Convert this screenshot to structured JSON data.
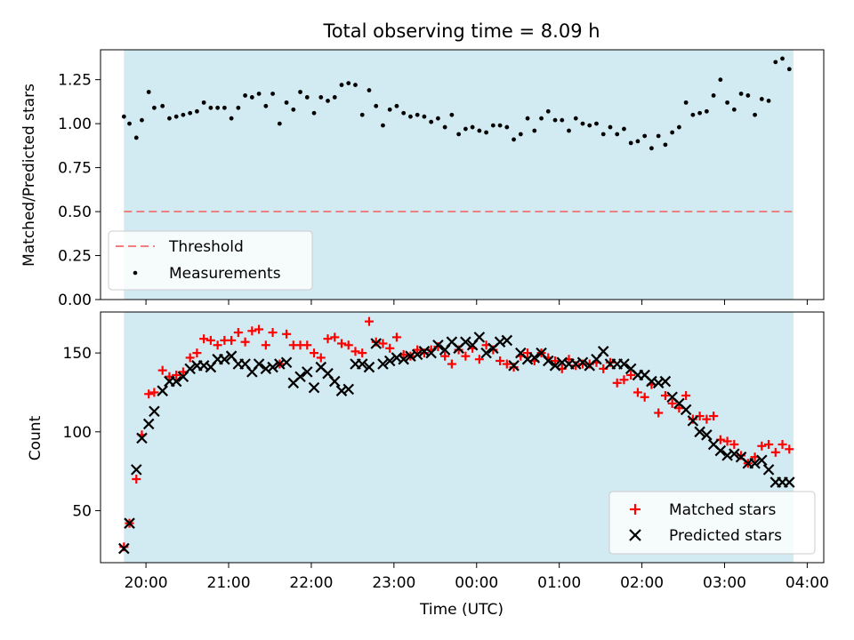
{
  "chart_data": [
    {
      "type": "scatter",
      "title": "Total observing time = 8.09 h",
      "ylabel": "Matched/Predicted stars",
      "ylim": [
        0,
        1.42
      ],
      "yticks": [
        0,
        0.25,
        0.5,
        0.75,
        1.0,
        1.25
      ],
      "ytick_labels": [
        "0.00",
        "0.25",
        "0.50",
        "0.75",
        "1.00",
        "1.25"
      ],
      "observing_window": {
        "start": "19:44",
        "end": "03:50"
      },
      "threshold": {
        "name": "Threshold",
        "value": 0.5,
        "color": "#f08080",
        "style": "dashed"
      },
      "legend": {
        "placement": "lower-left",
        "entries": [
          "Threshold",
          "Measurements"
        ]
      },
      "series": [
        {
          "name": "Measurements",
          "marker": "dot",
          "color": "#000000",
          "x": [
            "19:44",
            "19:48",
            "19:53",
            "19:57",
            "20:02",
            "20:06",
            "20:12",
            "20:17",
            "20:22",
            "20:27",
            "20:32",
            "20:37",
            "20:42",
            "20:47",
            "20:52",
            "20:57",
            "21:02",
            "21:07",
            "21:12",
            "21:17",
            "21:22",
            "21:27",
            "21:32",
            "21:37",
            "21:42",
            "21:47",
            "21:52",
            "21:57",
            "22:02",
            "22:07",
            "22:12",
            "22:17",
            "22:22",
            "22:27",
            "22:32",
            "22:37",
            "22:42",
            "22:47",
            "22:52",
            "22:57",
            "23:02",
            "23:07",
            "23:12",
            "23:17",
            "23:22",
            "23:27",
            "23:32",
            "23:37",
            "23:42",
            "23:47",
            "23:52",
            "23:57",
            "00:02",
            "00:07",
            "00:12",
            "00:17",
            "00:22",
            "00:27",
            "00:32",
            "00:37",
            "00:42",
            "00:47",
            "00:52",
            "00:57",
            "01:02",
            "01:07",
            "01:12",
            "01:17",
            "01:22",
            "01:27",
            "01:32",
            "01:37",
            "01:42",
            "01:47",
            "01:52",
            "01:57",
            "02:02",
            "02:07",
            "02:12",
            "02:17",
            "02:22",
            "02:27",
            "02:32",
            "02:37",
            "02:42",
            "02:47",
            "02:52",
            "02:57",
            "03:02",
            "03:07",
            "03:12",
            "03:17",
            "03:22",
            "03:27",
            "03:32",
            "03:37",
            "03:42",
            "03:47"
          ],
          "y": [
            1.04,
            1.0,
            0.92,
            1.02,
            1.18,
            1.09,
            1.1,
            1.03,
            1.04,
            1.05,
            1.06,
            1.07,
            1.12,
            1.09,
            1.09,
            1.09,
            1.03,
            1.09,
            1.16,
            1.15,
            1.17,
            1.1,
            1.17,
            1.0,
            1.12,
            1.08,
            1.18,
            1.15,
            1.06,
            1.15,
            1.13,
            1.15,
            1.22,
            1.23,
            1.22,
            1.05,
            1.19,
            1.1,
            0.99,
            1.08,
            1.1,
            1.06,
            1.04,
            1.05,
            1.04,
            1.01,
            1.03,
            0.98,
            1.05,
            0.94,
            0.97,
            0.98,
            0.96,
            0.95,
            0.99,
            0.99,
            0.98,
            0.91,
            0.94,
            1.03,
            0.96,
            1.03,
            1.07,
            1.02,
            1.02,
            0.96,
            1.03,
            1.0,
            0.99,
            1.0,
            0.94,
            0.98,
            0.94,
            0.97,
            0.89,
            0.9,
            0.93,
            0.86,
            0.93,
            0.88,
            0.95,
            0.98,
            1.12,
            1.05,
            1.06,
            1.07,
            1.16,
            1.25,
            1.12,
            1.08,
            1.17,
            1.16,
            1.05,
            1.14,
            1.13,
            1.35,
            1.37,
            1.31
          ]
        }
      ]
    },
    {
      "type": "scatter",
      "xlabel": "Time (UTC)",
      "ylabel": "Count",
      "ylim": [
        17,
        176
      ],
      "yticks": [
        50,
        100,
        150
      ],
      "ytick_labels": [
        "50",
        "100",
        "150"
      ],
      "xticks": [
        "20:00",
        "21:00",
        "22:00",
        "23:00",
        "00:00",
        "01:00",
        "02:00",
        "03:00",
        "04:00"
      ],
      "x_range": [
        "19:27",
        "04:12"
      ],
      "observing_window": {
        "start": "19:44",
        "end": "03:50"
      },
      "legend": {
        "placement": "lower-right",
        "entries": [
          "Matched stars",
          "Predicted stars"
        ]
      },
      "series": [
        {
          "name": "Matched stars",
          "marker": "plus",
          "color": "#ff0000",
          "x": [
            "19:44",
            "19:48",
            "19:53",
            "19:57",
            "20:02",
            "20:06",
            "20:12",
            "20:17",
            "20:22",
            "20:27",
            "20:32",
            "20:37",
            "20:42",
            "20:47",
            "20:52",
            "20:57",
            "21:02",
            "21:07",
            "21:12",
            "21:17",
            "21:22",
            "21:27",
            "21:32",
            "21:37",
            "21:42",
            "21:47",
            "21:52",
            "21:57",
            "22:02",
            "22:07",
            "22:12",
            "22:17",
            "22:22",
            "22:27",
            "22:32",
            "22:37",
            "22:42",
            "22:47",
            "22:52",
            "22:57",
            "23:02",
            "23:07",
            "23:12",
            "23:17",
            "23:22",
            "23:27",
            "23:32",
            "23:37",
            "23:42",
            "23:47",
            "23:52",
            "23:57",
            "00:02",
            "00:07",
            "00:12",
            "00:17",
            "00:22",
            "00:27",
            "00:32",
            "00:37",
            "00:42",
            "00:47",
            "00:52",
            "00:57",
            "01:02",
            "01:07",
            "01:12",
            "01:17",
            "01:22",
            "01:27",
            "01:32",
            "01:37",
            "01:42",
            "01:47",
            "01:52",
            "01:57",
            "02:02",
            "02:07",
            "02:12",
            "02:17",
            "02:22",
            "02:27",
            "02:32",
            "02:37",
            "02:42",
            "02:47",
            "02:52",
            "02:57",
            "03:02",
            "03:07",
            "03:12",
            "03:17",
            "03:22",
            "03:27",
            "03:32",
            "03:37",
            "03:42",
            "03:47"
          ],
          "y": [
            27,
            42,
            70,
            98,
            124,
            125,
            139,
            135,
            136,
            138,
            147,
            150,
            159,
            158,
            155,
            158,
            158,
            163,
            157,
            164,
            165,
            155,
            163,
            143,
            162,
            155,
            155,
            155,
            150,
            147,
            159,
            160,
            156,
            155,
            151,
            150,
            170,
            157,
            156,
            153,
            160,
            149,
            148,
            152,
            150,
            152,
            154,
            148,
            143,
            152,
            148,
            153,
            146,
            155,
            152,
            145,
            143,
            141,
            148,
            150,
            145,
            150,
            147,
            145,
            140,
            146,
            142,
            143,
            143,
            144,
            140,
            144,
            131,
            133,
            136,
            125,
            122,
            130,
            112,
            123,
            118,
            115,
            123,
            108,
            110,
            108,
            110,
            95,
            94,
            92,
            85,
            80,
            84,
            91,
            92,
            87,
            92,
            89
          ]
        },
        {
          "name": "Predicted stars",
          "marker": "x",
          "color": "#000000",
          "x": [
            "19:44",
            "19:48",
            "19:53",
            "19:57",
            "20:02",
            "20:06",
            "20:12",
            "20:17",
            "20:22",
            "20:27",
            "20:32",
            "20:37",
            "20:42",
            "20:47",
            "20:52",
            "20:57",
            "21:02",
            "21:07",
            "21:12",
            "21:17",
            "21:22",
            "21:27",
            "21:32",
            "21:37",
            "21:42",
            "21:47",
            "21:52",
            "21:57",
            "22:02",
            "22:07",
            "22:12",
            "22:17",
            "22:22",
            "22:27",
            "22:32",
            "22:37",
            "22:42",
            "22:47",
            "22:52",
            "22:57",
            "23:02",
            "23:07",
            "23:12",
            "23:17",
            "23:22",
            "23:27",
            "23:32",
            "23:37",
            "23:42",
            "23:47",
            "23:52",
            "23:57",
            "00:02",
            "00:07",
            "00:12",
            "00:17",
            "00:22",
            "00:27",
            "00:32",
            "00:37",
            "00:42",
            "00:47",
            "00:52",
            "00:57",
            "01:02",
            "01:07",
            "01:12",
            "01:17",
            "01:22",
            "01:27",
            "01:32",
            "01:37",
            "01:42",
            "01:47",
            "01:52",
            "01:57",
            "02:02",
            "02:07",
            "02:12",
            "02:17",
            "02:22",
            "02:27",
            "02:32",
            "02:37",
            "02:42",
            "02:47",
            "02:52",
            "02:57",
            "03:02",
            "03:07",
            "03:12",
            "03:17",
            "03:22",
            "03:27",
            "03:32",
            "03:37",
            "03:42",
            "03:47"
          ],
          "y": [
            26,
            42,
            76,
            96,
            105,
            113,
            126,
            132,
            132,
            135,
            140,
            142,
            142,
            141,
            146,
            146,
            148,
            143,
            143,
            138,
            143,
            140,
            141,
            143,
            144,
            131,
            135,
            138,
            128,
            141,
            137,
            132,
            126,
            127,
            143,
            143,
            141,
            156,
            143,
            145,
            147,
            146,
            148,
            149,
            151,
            150,
            155,
            152,
            157,
            153,
            157,
            155,
            160,
            150,
            153,
            157,
            158,
            142,
            150,
            146,
            147,
            150,
            145,
            142,
            144,
            143,
            143,
            144,
            142,
            146,
            151,
            143,
            143,
            143,
            140,
            136,
            136,
            132,
            131,
            132,
            122,
            118,
            114,
            107,
            100,
            98,
            92,
            88,
            85,
            86,
            84,
            80,
            80,
            82,
            76,
            68,
            68,
            68
          ]
        }
      ]
    }
  ]
}
